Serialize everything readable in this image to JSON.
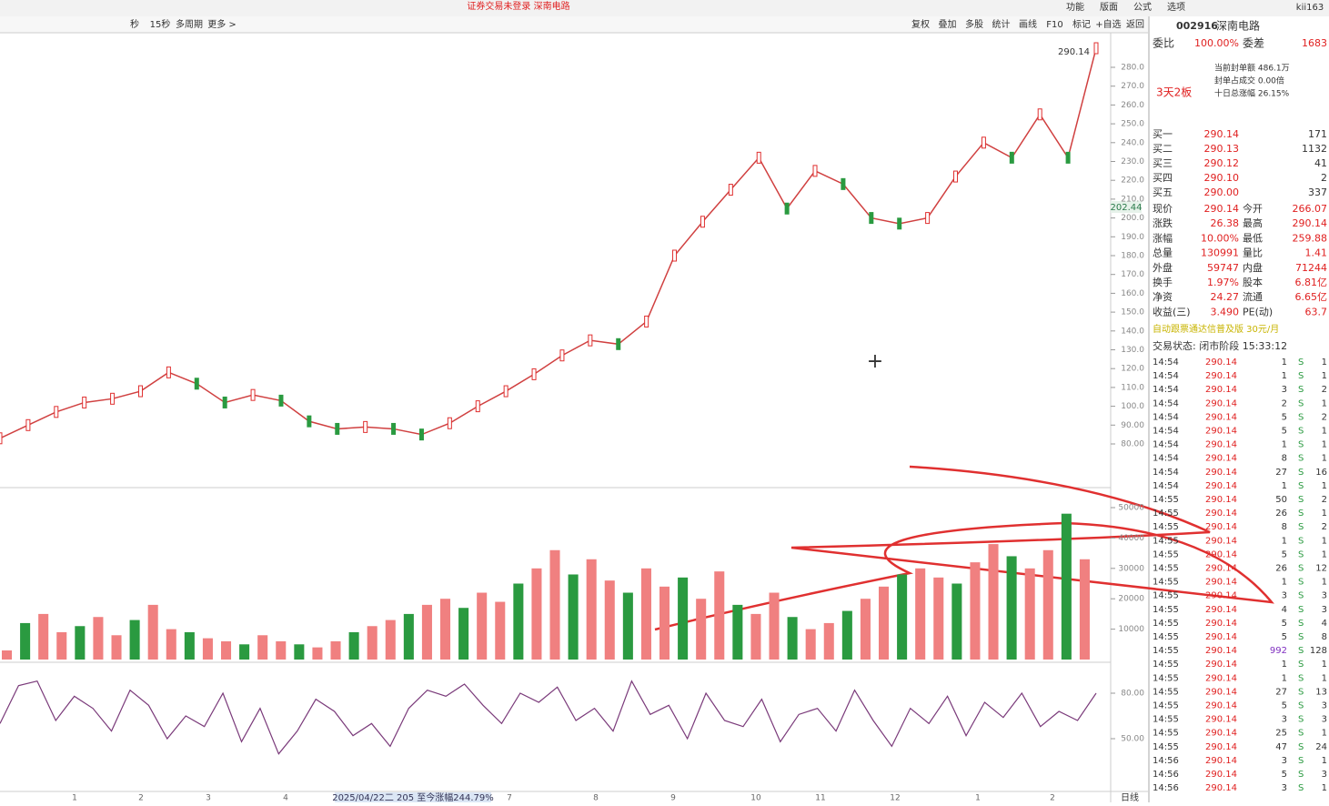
{
  "top": {
    "alert": "证券交易未登录  深南电路",
    "menu": [
      "功能",
      "版面",
      "公式",
      "选项"
    ],
    "user": "kii163"
  },
  "toolbar": {
    "left": [
      "秒",
      "15秒",
      "多周期",
      "更多 >"
    ],
    "right": [
      "复权",
      "叠加",
      "多股",
      "统计",
      "画线",
      "F10",
      "标记",
      "+自选",
      "返回"
    ]
  },
  "chart": {
    "last_label": "290.14",
    "current_label": "202.44",
    "period": "日线",
    "range_note": "2025/04/22二 205 至今涨幅244.79%",
    "months": [
      "1",
      "2",
      "3",
      "4",
      "7",
      "8",
      "9",
      "10",
      "11",
      "12",
      "1",
      "2"
    ],
    "yticks": [
      {
        "value": 280,
        "label": "280.0"
      },
      {
        "value": 270,
        "label": "270.0"
      },
      {
        "value": 260,
        "label": "260.0"
      },
      {
        "value": 250,
        "label": "250.0"
      },
      {
        "value": 240,
        "label": "240.0"
      },
      {
        "value": 230,
        "label": "230.0"
      },
      {
        "value": 220,
        "label": "220.0"
      },
      {
        "value": 210,
        "label": "210.0"
      },
      {
        "value": 200,
        "label": "200.0"
      },
      {
        "value": 190,
        "label": "190.0"
      },
      {
        "value": 180,
        "label": "180.0"
      },
      {
        "value": 170,
        "label": "170.0"
      },
      {
        "value": 160,
        "label": "160.0"
      },
      {
        "value": 150,
        "label": "150.0"
      },
      {
        "value": 140,
        "label": "140.0"
      },
      {
        "value": 130,
        "label": "130.0"
      },
      {
        "value": 120,
        "label": "120.0"
      },
      {
        "value": 110,
        "label": "110.0"
      },
      {
        "value": 100,
        "label": "100.0"
      },
      {
        "value": 90,
        "label": "90.00"
      },
      {
        "value": 80,
        "label": "80.00"
      }
    ],
    "closes": [
      83,
      90,
      97,
      102,
      104,
      108,
      118,
      112,
      102,
      106,
      103,
      92,
      88,
      89,
      88,
      85,
      91,
      100,
      108,
      117,
      127,
      135,
      133,
      145,
      180,
      198,
      215,
      232,
      205,
      225,
      218,
      200,
      197,
      200,
      222,
      240,
      232,
      255,
      232,
      290.14
    ],
    "vol_yticks": [
      10000,
      20000,
      30000,
      40000,
      50000
    ],
    "volumes": [
      3000,
      12000,
      15000,
      9000,
      11000,
      14000,
      8000,
      13000,
      18000,
      10000,
      9000,
      7000,
      6000,
      5000,
      8000,
      6000,
      5000,
      4000,
      6000,
      9000,
      11000,
      13000,
      15000,
      18000,
      20000,
      17000,
      22000,
      19000,
      25000,
      30000,
      36000,
      28000,
      33000,
      26000,
      22000,
      30000,
      24000,
      27000,
      20000,
      29000,
      18000,
      15000,
      22000,
      14000,
      10000,
      12000,
      16000,
      20000,
      24000,
      28000,
      30000,
      27000,
      25000,
      32000,
      38000,
      34000,
      30000,
      36000,
      48000,
      33000
    ],
    "osc_yticks": [
      {
        "value": 80,
        "label": "80.00"
      },
      {
        "value": 50,
        "label": "50.00"
      }
    ],
    "osc": [
      60,
      85,
      88,
      62,
      78,
      70,
      55,
      82,
      72,
      50,
      65,
      58,
      80,
      48,
      70,
      40,
      55,
      76,
      68,
      52,
      60,
      45,
      70,
      82,
      78,
      86,
      72,
      60,
      80,
      74,
      84,
      62,
      70,
      55,
      88,
      66,
      72,
      50,
      80,
      62,
      58,
      76,
      48,
      66,
      70,
      55,
      82,
      62,
      45,
      70,
      60,
      78,
      52,
      74,
      64,
      80,
      58,
      68,
      62,
      80
    ]
  },
  "quote": {
    "code": "002916",
    "name": "深南电路",
    "weibi_label": "委比",
    "weibi": "100.00%",
    "weicha_label": "委差",
    "weicha": "1683",
    "board": "3天2板",
    "seal": [
      "当前封单额 486.1万",
      "封单占成交 0.00倍",
      "十日总涨幅 26.15%"
    ],
    "bids": [
      [
        "买一",
        "290.14",
        "171"
      ],
      [
        "买二",
        "290.13",
        "1132"
      ],
      [
        "买三",
        "290.12",
        "41"
      ],
      [
        "买四",
        "290.10",
        "2"
      ],
      [
        "买五",
        "290.00",
        "337"
      ]
    ],
    "stats": [
      [
        "现价",
        "290.14",
        "今开",
        "266.07"
      ],
      [
        "涨跌",
        "26.38",
        "最高",
        "290.14"
      ],
      [
        "涨幅",
        "10.00%",
        "最低",
        "259.88"
      ],
      [
        "总量",
        "130991",
        "量比",
        "1.41"
      ],
      [
        "外盘",
        "59747",
        "内盘",
        "71244"
      ],
      [
        "换手",
        "1.97%",
        "股本",
        "6.81亿"
      ],
      [
        "净资",
        "24.27",
        "流通",
        "6.65亿"
      ],
      [
        "收益(三)",
        "3.490",
        "PE(动)",
        "63.7"
      ]
    ],
    "ad": "自动跟票通达信普及版 30元/月",
    "status": "交易状态: 闭市阶段 15:33:12"
  },
  "ticks": [
    [
      "14:54",
      "290.14",
      "1",
      "S",
      "1"
    ],
    [
      "14:54",
      "290.14",
      "1",
      "S",
      "1"
    ],
    [
      "14:54",
      "290.14",
      "3",
      "S",
      "2"
    ],
    [
      "14:54",
      "290.14",
      "2",
      "S",
      "1"
    ],
    [
      "14:54",
      "290.14",
      "5",
      "S",
      "2"
    ],
    [
      "14:54",
      "290.14",
      "5",
      "S",
      "1"
    ],
    [
      "14:54",
      "290.14",
      "1",
      "S",
      "1"
    ],
    [
      "14:54",
      "290.14",
      "8",
      "S",
      "1"
    ],
    [
      "14:54",
      "290.14",
      "27",
      "S",
      "16"
    ],
    [
      "14:54",
      "290.14",
      "1",
      "S",
      "1"
    ],
    [
      "14:55",
      "290.14",
      "50",
      "S",
      "2"
    ],
    [
      "14:55",
      "290.14",
      "26",
      "S",
      "1"
    ],
    [
      "14:55",
      "290.14",
      "8",
      "S",
      "2"
    ],
    [
      "14:55",
      "290.14",
      "1",
      "S",
      "1"
    ],
    [
      "14:55",
      "290.14",
      "5",
      "S",
      "1"
    ],
    [
      "14:55",
      "290.14",
      "26",
      "S",
      "12"
    ],
    [
      "14:55",
      "290.14",
      "1",
      "S",
      "1"
    ],
    [
      "14:55",
      "290.14",
      "3",
      "S",
      "3"
    ],
    [
      "14:55",
      "290.14",
      "4",
      "S",
      "3"
    ],
    [
      "14:55",
      "290.14",
      "5",
      "S",
      "4"
    ],
    [
      "14:55",
      "290.14",
      "5",
      "S",
      "8"
    ],
    [
      "14:55",
      "290.14",
      "992",
      "S",
      "128"
    ],
    [
      "14:55",
      "290.14",
      "1",
      "S",
      "1"
    ],
    [
      "14:55",
      "290.14",
      "1",
      "S",
      "1"
    ],
    [
      "14:55",
      "290.14",
      "27",
      "S",
      "13"
    ],
    [
      "14:55",
      "290.14",
      "5",
      "S",
      "3"
    ],
    [
      "14:55",
      "290.14",
      "3",
      "S",
      "3"
    ],
    [
      "14:55",
      "290.14",
      "25",
      "S",
      "1"
    ],
    [
      "14:55",
      "290.14",
      "47",
      "S",
      "24"
    ],
    [
      "14:56",
      "290.14",
      "3",
      "S",
      "1"
    ],
    [
      "14:56",
      "290.14",
      "5",
      "S",
      "3"
    ],
    [
      "14:56",
      "290.14",
      "3",
      "S",
      "1"
    ]
  ]
}
